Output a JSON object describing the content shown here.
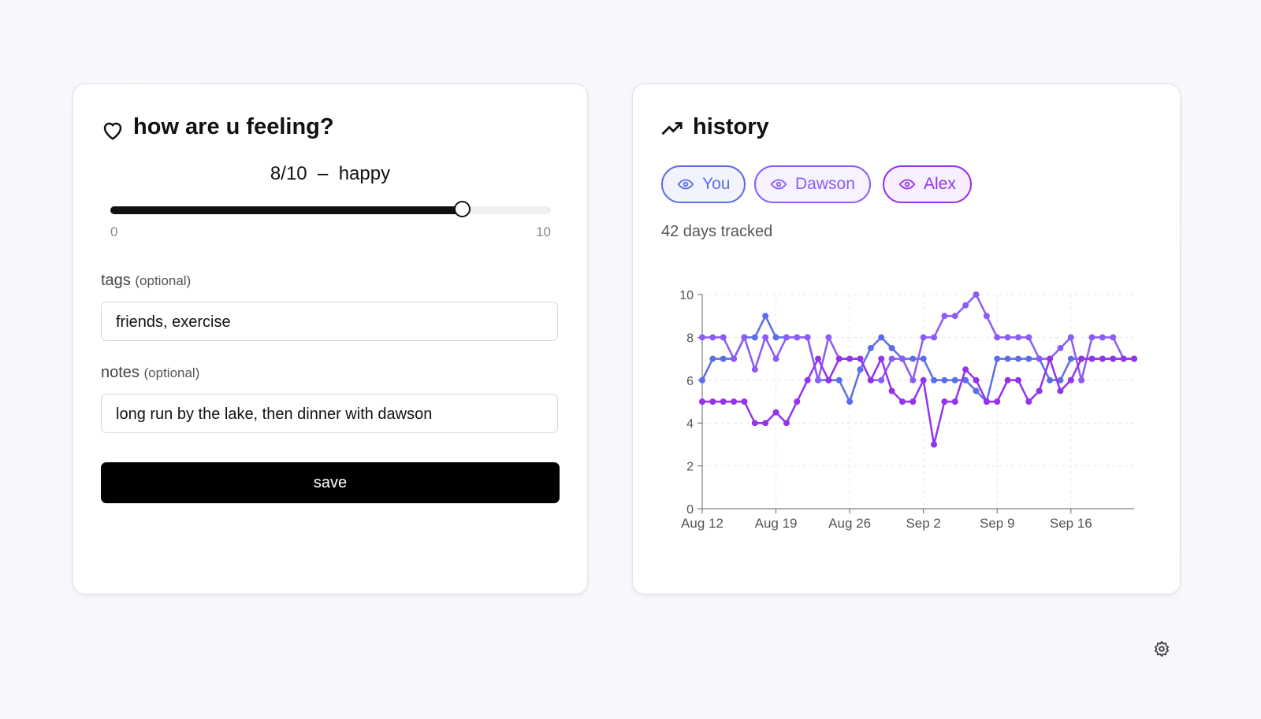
{
  "feeling": {
    "title": "how are u feeling?",
    "score_text": "8/10",
    "separator": "–",
    "mood": "happy",
    "slider": {
      "min": 0,
      "max": 10,
      "value": 8,
      "min_label": "0",
      "max_label": "10"
    },
    "tags": {
      "label": "tags",
      "hint": "(optional)",
      "value": "friends, exercise"
    },
    "notes": {
      "label": "notes",
      "hint": "(optional)",
      "value": "long run by the lake, then dinner with dawson"
    },
    "button": "save"
  },
  "history": {
    "title": "history",
    "summary": "42 days tracked",
    "chart": {
      "type": "line",
      "x": [
        "Aug 12",
        "Aug 13",
        "Aug 14",
        "Aug 15",
        "Aug 16",
        "Aug 17",
        "Aug 18",
        "Aug 19",
        "Aug 20",
        "Aug 21",
        "Aug 22",
        "Aug 23",
        "Aug 24",
        "Aug 25",
        "Aug 26",
        "Aug 27",
        "Aug 28",
        "Aug 29",
        "Aug 30",
        "Aug 31",
        "Sep 1",
        "Sep 2",
        "Sep 3",
        "Sep 4",
        "Sep 5",
        "Sep 6",
        "Sep 7",
        "Sep 8",
        "Sep 9",
        "Sep 10",
        "Sep 11",
        "Sep 12",
        "Sep 13",
        "Sep 14",
        "Sep 15",
        "Sep 16",
        "Sep 17",
        "Sep 18",
        "Sep 19",
        "Sep 20",
        "Sep 21",
        "Sep 22"
      ],
      "series": [
        {
          "name": "You",
          "color": "#5b6ee8",
          "values": [
            6,
            7,
            7,
            7,
            8,
            8,
            9,
            8,
            8,
            8,
            8,
            6,
            6,
            6,
            5,
            6.5,
            7.5,
            8,
            7.5,
            7,
            7,
            7,
            6,
            6,
            6,
            6,
            5.5,
            5,
            7,
            7,
            7,
            7,
            7,
            6,
            6,
            7,
            7,
            7,
            7,
            7,
            7,
            7
          ]
        },
        {
          "name": "Dawson",
          "color": "#8b5cf6",
          "values": [
            8,
            8,
            8,
            7,
            8,
            6.5,
            8,
            7,
            8,
            8,
            8,
            6,
            8,
            7,
            7,
            7,
            6,
            6,
            7,
            7,
            6,
            8,
            8,
            9,
            9,
            9.5,
            10,
            9,
            8,
            8,
            8,
            8,
            7,
            7,
            7.5,
            8,
            6,
            8,
            8,
            8,
            7,
            7
          ]
        },
        {
          "name": "Alex",
          "color": "#9333ea",
          "values": [
            5,
            5,
            5,
            5,
            5,
            4,
            4,
            4.5,
            4,
            5,
            6,
            7,
            6,
            7,
            7,
            7,
            6,
            7,
            5.5,
            5,
            5,
            6,
            3,
            5,
            5,
            6.5,
            6,
            5,
            5,
            6,
            6,
            5,
            5.5,
            7,
            5.5,
            6,
            7,
            7,
            7,
            7,
            7,
            7
          ]
        }
      ],
      "ylim": [
        0,
        10
      ],
      "yticks": [
        0,
        2,
        4,
        6,
        8,
        10
      ],
      "grid": true
    }
  }
}
